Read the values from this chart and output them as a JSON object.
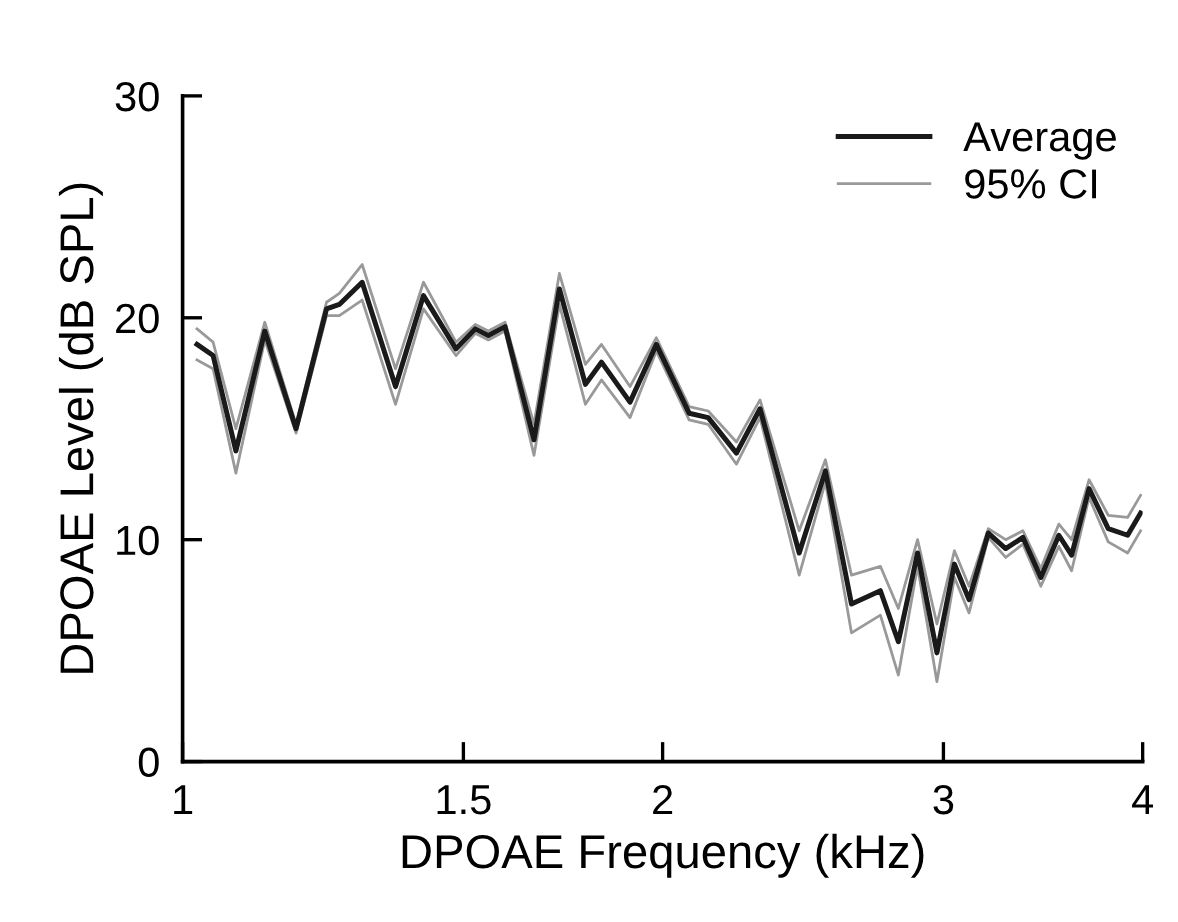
{
  "chart_data": {
    "type": "line",
    "xlabel": "DPOAE Frequency (kHz)",
    "ylabel": "DPOAE Level (dB SPL)",
    "x": [
      1.021,
      1.045,
      1.08,
      1.126,
      1.178,
      1.231,
      1.254,
      1.296,
      1.36,
      1.416,
      1.484,
      1.526,
      1.555,
      1.593,
      1.661,
      1.723,
      1.789,
      1.831,
      1.908,
      1.982,
      2.078,
      2.136,
      2.225,
      2.302,
      2.436,
      2.53,
      2.627,
      2.739,
      2.811,
      2.89,
      2.972,
      3.048,
      3.113,
      3.201,
      3.282,
      3.365,
      3.453,
      3.544,
      3.61,
      3.702,
      3.806,
      3.914,
      3.988
    ],
    "series": [
      {
        "name": "Average",
        "color": "#1a1a1a",
        "values": [
          18.8,
          18.3,
          14.0,
          19.4,
          15.0,
          20.4,
          20.6,
          21.6,
          16.9,
          21.0,
          18.6,
          19.5,
          19.2,
          19.6,
          14.5,
          21.3,
          17.0,
          18.0,
          16.2,
          18.8,
          15.7,
          15.5,
          13.9,
          15.9,
          9.4,
          13.1,
          7.1,
          7.7,
          5.4,
          9.4,
          4.9,
          8.9,
          7.3,
          10.3,
          9.6,
          10.1,
          8.3,
          10.2,
          9.3,
          12.3,
          10.5,
          10.2,
          11.2
        ]
      },
      {
        "name": "95% CI",
        "color": "#999999",
        "values": [
          19.5,
          18.9,
          15.0,
          19.8,
          15.2,
          20.7,
          21.1,
          22.4,
          17.7,
          21.6,
          18.9,
          19.7,
          19.4,
          19.8,
          15.2,
          22.0,
          17.9,
          18.8,
          16.9,
          19.1,
          16.0,
          15.8,
          14.4,
          16.3,
          10.4,
          13.6,
          8.4,
          8.8,
          6.9,
          10.0,
          6.2,
          9.5,
          7.9,
          10.5,
          10.0,
          10.4,
          8.7,
          10.7,
          10.0,
          12.7,
          11.1,
          11.0,
          12.0
        ]
      },
      {
        "color": "#999999",
        "values": [
          18.1,
          17.7,
          13.0,
          19.0,
          14.8,
          20.1,
          20.1,
          20.8,
          16.1,
          20.4,
          18.3,
          19.3,
          19.0,
          19.4,
          13.8,
          20.6,
          16.1,
          17.2,
          15.5,
          18.5,
          15.4,
          15.2,
          13.4,
          15.5,
          8.4,
          12.6,
          5.8,
          6.6,
          3.9,
          8.8,
          3.6,
          8.3,
          6.7,
          10.1,
          9.2,
          9.8,
          7.9,
          9.7,
          8.6,
          11.9,
          9.9,
          9.4,
          10.4
        ]
      }
    ],
    "log": "x",
    "xlim": [
      1,
      4
    ],
    "xticks": [
      1,
      1.5,
      2,
      3,
      4
    ],
    "ylim": [
      0,
      30
    ],
    "yticks": [
      0,
      10,
      20,
      30
    ],
    "grid": false,
    "legend": "top right"
  }
}
